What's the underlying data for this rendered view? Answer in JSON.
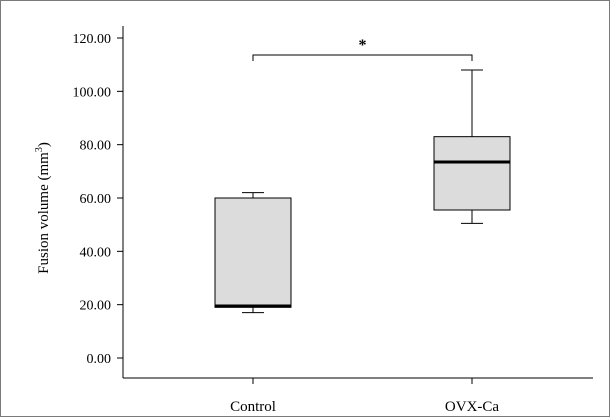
{
  "chart_data": {
    "type": "box",
    "ylabel": "Fusion volume (mm",
    "ylabel_sup": "3",
    "ylabel_close": ")",
    "ylim": [
      0,
      120
    ],
    "yticks": [
      0,
      20,
      40,
      60,
      80,
      100,
      120
    ],
    "ytick_labels": [
      "0.00",
      "20.00",
      "40.00",
      "60.00",
      "80.00",
      "100.00",
      "120.00"
    ],
    "categories": [
      "Control",
      "OVX-Ca"
    ],
    "boxes": [
      {
        "name": "Control",
        "whisker_low": 17,
        "q1": 19,
        "median": 19.5,
        "q3": 60,
        "whisker_high": 62
      },
      {
        "name": "OVX-Ca",
        "whisker_low": 50.5,
        "q1": 55.5,
        "median": 73.5,
        "q3": 83,
        "whisker_high": 108
      }
    ],
    "annotation": {
      "text": "*",
      "between": [
        "Control",
        "OVX-Ca"
      ]
    },
    "colors": {
      "box_fill": "#dcdcdc",
      "stroke": "#000000"
    },
    "grid": false
  }
}
